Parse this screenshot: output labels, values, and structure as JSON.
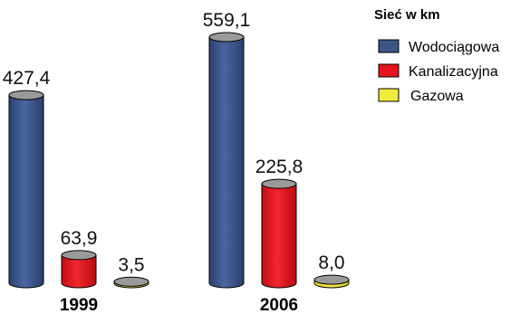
{
  "chart_data": {
    "type": "bar",
    "categories": [
      "1999",
      "2006"
    ],
    "series": [
      {
        "name": "Wodociągowa",
        "values": [
          427.4,
          559.1
        ],
        "labels": [
          "427,4",
          "559,1"
        ],
        "color": "#3c5587"
      },
      {
        "name": "Kanalizacyjna",
        "values": [
          63.9,
          225.8
        ],
        "labels": [
          "63,9",
          "225,8"
        ],
        "color": "#e8131b"
      },
      {
        "name": "Gazowa",
        "values": [
          3.5,
          8.0
        ],
        "labels": [
          "3,5",
          "8,0"
        ],
        "color": "#f2ea3a"
      }
    ],
    "legend": {
      "title": "Sieć w km",
      "position": "top-right"
    },
    "ylim": [
      0,
      559.1
    ],
    "grid": false
  }
}
